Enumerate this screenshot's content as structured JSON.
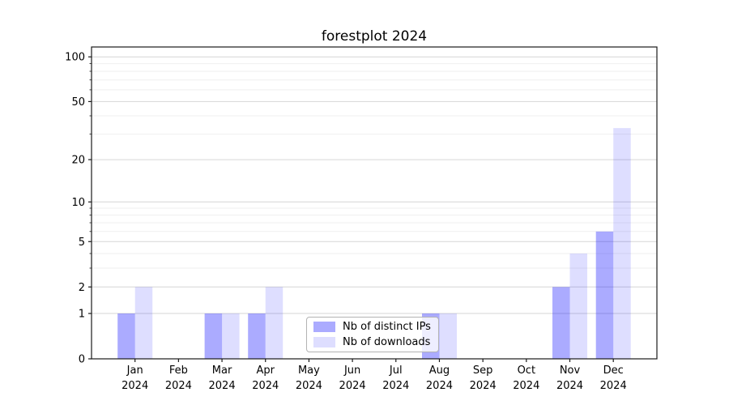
{
  "chart_data": {
    "type": "bar",
    "title": "forestplot 2024",
    "x_categories": [
      "Jan",
      "Feb",
      "Mar",
      "Apr",
      "May",
      "Jun",
      "Jul",
      "Aug",
      "Sep",
      "Oct",
      "Nov",
      "Dec"
    ],
    "x_year_label": "2024",
    "series": [
      {
        "name": "Nb of distinct IPs",
        "color": "rgba(0,0,255,0.33)",
        "values": [
          1,
          0,
          1,
          1,
          0,
          0,
          0,
          1,
          0,
          0,
          2,
          6
        ]
      },
      {
        "name": "Nb of downloads",
        "color": "rgba(0,0,255,0.13)",
        "values": [
          2,
          0,
          1,
          2,
          0,
          0,
          0,
          1,
          0,
          0,
          4,
          33
        ]
      }
    ],
    "y_scale": "log10(1+x)",
    "y_ticks": [
      0,
      1,
      2,
      5,
      10,
      20,
      50,
      100
    ],
    "y_minor_ticks": [
      3,
      4,
      6,
      7,
      8,
      9,
      30,
      40,
      60,
      70,
      80,
      90
    ],
    "ylim": [
      0,
      116
    ],
    "grid": true,
    "legend_position": "lower center",
    "colors": {
      "major_grid": "#d6d6d6",
      "minor_grid": "#efefef",
      "spine": "#1a1a1a",
      "tick_text": "#000000"
    }
  }
}
